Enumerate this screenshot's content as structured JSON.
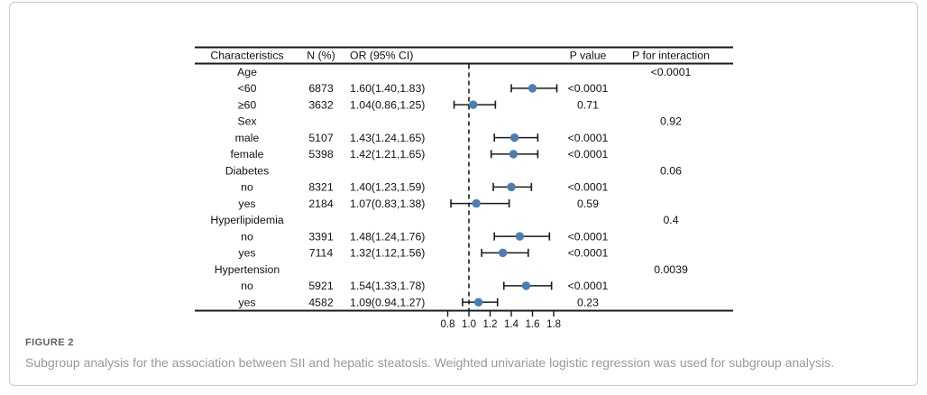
{
  "figure": {
    "caption_label": "FIGURE 2",
    "caption_text": "Subgroup analysis for the association between SII and hepatic steatosis. Weighted univariate logistic regression was used for subgroup analysis."
  },
  "chart_data": {
    "type": "forest-plot",
    "headers": {
      "characteristics": "Characteristics",
      "n": "N (%)",
      "or_ci": "OR (95% CI)",
      "p": "P value",
      "p_interaction": "P for interaction"
    },
    "axis": {
      "tick_labels": [
        "0.8",
        "1.0",
        "1.2",
        "1.4",
        "1.6",
        "1.8"
      ],
      "reference_line": 1.0,
      "range": [
        0.7,
        1.95
      ]
    },
    "marker_color": "#4c7db4",
    "line_color": "#1a1a1a",
    "rows": [
      {
        "label": "Age",
        "p_interaction": "<0.0001"
      },
      {
        "label": "<60",
        "n": "6873",
        "or_ci": "1.60(1.40,1.83)",
        "est": 1.6,
        "lo": 1.4,
        "hi": 1.83,
        "p": "<0.0001"
      },
      {
        "label": "≥60",
        "n": "3632",
        "or_ci": "1.04(0.86,1.25)",
        "est": 1.04,
        "lo": 0.86,
        "hi": 1.25,
        "p": "0.71"
      },
      {
        "label": "Sex",
        "p_interaction": "0.92"
      },
      {
        "label": "male",
        "n": "5107",
        "or_ci": "1.43(1.24,1.65)",
        "est": 1.43,
        "lo": 1.24,
        "hi": 1.65,
        "p": "<0.0001"
      },
      {
        "label": "female",
        "n": "5398",
        "or_ci": "1.42(1.21,1.65)",
        "est": 1.42,
        "lo": 1.21,
        "hi": 1.65,
        "p": "<0.0001"
      },
      {
        "label": "Diabetes",
        "p_interaction": "0.06"
      },
      {
        "label": "no",
        "n": "8321",
        "or_ci": "1.40(1.23,1.59)",
        "est": 1.4,
        "lo": 1.23,
        "hi": 1.59,
        "p": "<0.0001"
      },
      {
        "label": "yes",
        "n": "2184",
        "or_ci": "1.07(0.83,1.38)",
        "est": 1.07,
        "lo": 0.83,
        "hi": 1.38,
        "p": "0.59"
      },
      {
        "label": "Hyperlipidemia",
        "p_interaction": "0.4"
      },
      {
        "label": "no",
        "n": "3391",
        "or_ci": "1.48(1.24,1.76)",
        "est": 1.48,
        "lo": 1.24,
        "hi": 1.76,
        "p": "<0.0001"
      },
      {
        "label": "yes",
        "n": "7114",
        "or_ci": "1.32(1.12,1.56)",
        "est": 1.32,
        "lo": 1.12,
        "hi": 1.56,
        "p": "<0.0001"
      },
      {
        "label": "Hypertension",
        "p_interaction": "0.0039"
      },
      {
        "label": "no",
        "n": "5921",
        "or_ci": "1.54(1.33,1.78)",
        "est": 1.54,
        "lo": 1.33,
        "hi": 1.78,
        "p": "<0.0001"
      },
      {
        "label": "yes",
        "n": "4582",
        "or_ci": "1.09(0.94,1.27)",
        "est": 1.09,
        "lo": 0.94,
        "hi": 1.27,
        "p": "0.23"
      }
    ]
  }
}
